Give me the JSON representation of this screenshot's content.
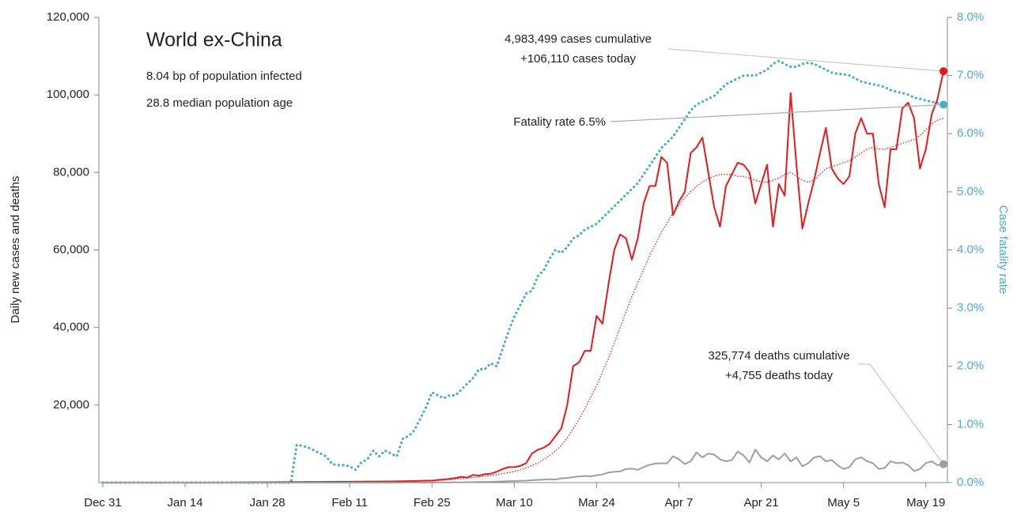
{
  "chart_data": {
    "type": "line",
    "title": "World ex-China",
    "subtitle": [
      "8.04 bp of population infected",
      "28.8 median population age"
    ],
    "ylabel": "Daily new cases and deaths",
    "y2label": "Case fatality rate",
    "categories": [
      "Dec 31",
      null,
      null,
      null,
      null,
      null,
      null,
      null,
      null,
      null,
      null,
      null,
      null,
      null,
      "Jan 14",
      null,
      null,
      null,
      null,
      null,
      null,
      null,
      null,
      null,
      null,
      null,
      null,
      null,
      "Jan 28",
      null,
      null,
      null,
      null,
      null,
      null,
      null,
      null,
      null,
      null,
      null,
      null,
      null,
      "Feb 11",
      null,
      null,
      null,
      null,
      null,
      null,
      null,
      null,
      null,
      null,
      null,
      null,
      null,
      "Feb 25",
      null,
      null,
      null,
      null,
      null,
      null,
      null,
      null,
      null,
      null,
      null,
      null,
      null,
      "Mar 10",
      null,
      null,
      null,
      null,
      null,
      null,
      null,
      null,
      null,
      null,
      null,
      null,
      null,
      "Mar 24",
      null,
      null,
      null,
      null,
      null,
      null,
      null,
      null,
      null,
      null,
      null,
      null,
      null,
      "Apr 7",
      null,
      null,
      null,
      null,
      null,
      null,
      null,
      null,
      null,
      null,
      null,
      null,
      null,
      "Apr 21",
      null,
      null,
      null,
      null,
      null,
      null,
      null,
      null,
      null,
      null,
      null,
      null,
      null,
      "May 5",
      null,
      null,
      null,
      null,
      null,
      null,
      null,
      null,
      null,
      null,
      null,
      null,
      null,
      "May 19",
      null,
      null,
      null
    ],
    "ylim": [
      0,
      120000
    ],
    "yticks": [
      {
        "value": 20000,
        "label": "20,000"
      },
      {
        "value": 40000,
        "label": "40,000"
      },
      {
        "value": 60000,
        "label": "60,000"
      },
      {
        "value": 80000,
        "label": "80,000"
      },
      {
        "value": 100000,
        "label": "100,000"
      },
      {
        "value": 120000,
        "label": "120,000"
      }
    ],
    "y2lim": [
      0,
      8
    ],
    "y2ticks": [
      {
        "value": 0,
        "label": "0.0%"
      },
      {
        "value": 1,
        "label": "1.0%"
      },
      {
        "value": 2,
        "label": "2.0%"
      },
      {
        "value": 3,
        "label": "3.0%"
      },
      {
        "value": 4,
        "label": "4.0%"
      },
      {
        "value": 5,
        "label": "5.0%"
      },
      {
        "value": 6,
        "label": "6.0%"
      },
      {
        "value": 7,
        "label": "7.0%"
      },
      {
        "value": 8,
        "label": "8.0%"
      }
    ],
    "annotations": [
      "4,983,499 cases cumulative",
      "+106,110 cases today",
      "Fatality rate 6.5%",
      "325,774 deaths cumulative",
      "+4,755 deaths today"
    ],
    "series": [
      {
        "color": "#4bacc6",
        "style": "dotted",
        "axis": "y2",
        "endpoint": true,
        "values": [
          0,
          0,
          0,
          0,
          0,
          0,
          0,
          0,
          0,
          0,
          0,
          0,
          0,
          0,
          0,
          0,
          0,
          0,
          0,
          0,
          0,
          0,
          0,
          0,
          0,
          0,
          0,
          0,
          0,
          0,
          0,
          0,
          0,
          0.65,
          0.63,
          0.6,
          0.55,
          0.5,
          0.45,
          0.32,
          0.3,
          0.3,
          0.28,
          0.22,
          0.35,
          0.4,
          0.55,
          0.45,
          0.55,
          0.5,
          0.45,
          0.75,
          0.8,
          0.9,
          1.1,
          1.3,
          1.55,
          1.5,
          1.45,
          1.5,
          1.5,
          1.6,
          1.7,
          1.8,
          1.95,
          1.95,
          2.05,
          2.0,
          2.3,
          2.6,
          2.85,
          3.05,
          3.25,
          3.3,
          3.55,
          3.65,
          3.85,
          4.0,
          3.95,
          4.05,
          4.2,
          4.25,
          4.35,
          4.4,
          4.45,
          4.55,
          4.65,
          4.75,
          4.85,
          4.95,
          5.05,
          5.15,
          5.3,
          5.45,
          5.6,
          5.75,
          5.85,
          5.95,
          6.1,
          6.25,
          6.4,
          6.5,
          6.55,
          6.6,
          6.65,
          6.75,
          6.85,
          6.9,
          6.95,
          7.0,
          7.0,
          7.0,
          7.05,
          7.1,
          7.2,
          7.25,
          7.2,
          7.15,
          7.15,
          7.2,
          7.22,
          7.2,
          7.15,
          7.1,
          7.05,
          7.03,
          7.02,
          7.0,
          6.95,
          6.9,
          6.87,
          6.85,
          6.83,
          6.8,
          6.75,
          6.72,
          6.7,
          6.67,
          6.62,
          6.6,
          6.57,
          6.55,
          6.53,
          6.5
        ]
      },
      {
        "color": "#e41a1c",
        "style": "thin-dotted",
        "values": [
          0,
          0,
          0,
          0,
          0,
          0,
          0,
          0,
          0,
          0,
          0,
          0,
          0,
          5,
          5,
          5,
          10,
          10,
          15,
          20,
          25,
          30,
          40,
          50,
          60,
          70,
          80,
          90,
          100,
          110,
          120,
          130,
          140,
          150,
          160,
          170,
          180,
          190,
          200,
          210,
          220,
          230,
          240,
          250,
          260,
          270,
          280,
          290,
          300,
          310,
          330,
          350,
          380,
          400,
          450,
          500,
          450,
          550,
          650,
          780,
          900,
          1050,
          1200,
          1350,
          1500,
          1650,
          1850,
          2050,
          2300,
          2600,
          2900,
          3300,
          3800,
          4400,
          5100,
          6000,
          7000,
          8200,
          9600,
          11500,
          13800,
          16300,
          19000,
          22000,
          25000,
          28500,
          32000,
          36000,
          40000,
          44000,
          48000,
          51500,
          55000,
          58500,
          61500,
          64500,
          67000,
          69500,
          71500,
          73500,
          75000,
          76500,
          77500,
          78500,
          79000,
          79500,
          79500,
          79500,
          79000,
          79000,
          78500,
          78000,
          77500,
          77500,
          78000,
          78500,
          79500,
          80000,
          79000,
          78000,
          77500,
          78000,
          79500,
          81000,
          81500,
          82000,
          82500,
          83000,
          84000,
          85000,
          86000,
          86500,
          86000,
          86000,
          86500,
          87000,
          87500,
          88000,
          88500,
          89500,
          91000,
          92500,
          93500,
          94000
        ]
      },
      {
        "color": "#e41a1c",
        "style": "solid",
        "endpoint": true,
        "values": [
          0,
          0,
          0,
          0,
          0,
          0,
          0,
          0,
          0,
          0,
          0,
          0,
          0,
          5,
          5,
          5,
          10,
          10,
          15,
          20,
          25,
          30,
          40,
          50,
          60,
          70,
          80,
          90,
          100,
          110,
          120,
          130,
          140,
          150,
          160,
          170,
          180,
          190,
          200,
          210,
          220,
          230,
          240,
          250,
          260,
          270,
          280,
          290,
          300,
          310,
          330,
          350,
          380,
          400,
          450,
          500,
          500,
          700,
          800,
          1000,
          1200,
          1500,
          1300,
          2000,
          1800,
          2200,
          2300,
          2800,
          3500,
          4000,
          4000,
          4300,
          5000,
          7500,
          8500,
          9000,
          10000,
          12000,
          14000,
          20000,
          30000,
          31000,
          34000,
          34000,
          43000,
          41000,
          51000,
          60000,
          64000,
          63000,
          57500,
          63000,
          72000,
          76500,
          76500,
          84000,
          82500,
          69000,
          72500,
          75000,
          85000,
          86500,
          89000,
          80000,
          71000,
          66000,
          76500,
          79500,
          82500,
          82000,
          80000,
          72000,
          77000,
          82000,
          66000,
          77000,
          74000,
          100500,
          82000,
          65500,
          72000,
          78000,
          85000,
          91500,
          81000,
          78500,
          77000,
          79000,
          90000,
          94000,
          90000,
          90000,
          77000,
          71000,
          86000,
          86000,
          96500,
          98000,
          94000,
          81000,
          86000,
          95000,
          99000,
          106110
        ]
      },
      {
        "color": "#9e9e9e",
        "style": "solid",
        "endpoint": true,
        "values": [
          0,
          0,
          0,
          0,
          0,
          0,
          0,
          0,
          0,
          0,
          0,
          0,
          0,
          0,
          0,
          0,
          0,
          0,
          0,
          0,
          0,
          0,
          0,
          0,
          0,
          0,
          0,
          0,
          0,
          0,
          0,
          0,
          0,
          0,
          0,
          0,
          0,
          0,
          0,
          0,
          0,
          0,
          0,
          0,
          0,
          0,
          0,
          0,
          0,
          0,
          10,
          10,
          15,
          20,
          20,
          25,
          30,
          40,
          50,
          60,
          70,
          80,
          100,
          120,
          150,
          180,
          200,
          250,
          300,
          350,
          400,
          450,
          500,
          600,
          700,
          800,
          900,
          800,
          1100,
          1200,
          1400,
          1600,
          1700,
          1600,
          1900,
          2100,
          2600,
          2800,
          2900,
          3500,
          3600,
          3300,
          4000,
          4600,
          4900,
          5000,
          5000,
          6800,
          6000,
          4800,
          5500,
          7800,
          6500,
          7500,
          7200,
          6000,
          5500,
          5800,
          8000,
          7000,
          5200,
          8500,
          6500,
          5500,
          7000,
          6000,
          7500,
          5500,
          6500,
          4200,
          5000,
          6500,
          6800,
          5500,
          5800,
          4500,
          3500,
          4000,
          6000,
          6500,
          5500,
          5000,
          3500,
          3800,
          5500,
          5000,
          5200,
          4500,
          3000,
          3500,
          5000,
          5500,
          4500,
          4755
        ]
      }
    ]
  }
}
